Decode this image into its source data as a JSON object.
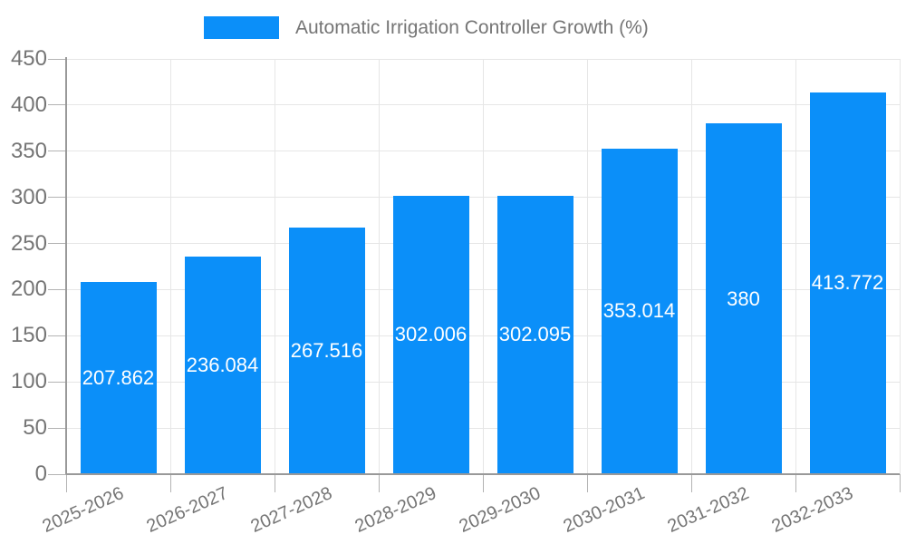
{
  "chart_data": {
    "type": "bar",
    "title": "Automatic Irrigation Controller Growth (%)",
    "categories": [
      "2025-2026",
      "2026-2027",
      "2027-2028",
      "2028-2029",
      "2029-2030",
      "2030-2031",
      "2031-2032",
      "2032-2033"
    ],
    "values": [
      207.862,
      236.084,
      267.516,
      302.006,
      302.095,
      353.014,
      380,
      413.772
    ],
    "value_labels": [
      "207.862",
      "236.084",
      "267.516",
      "302.006",
      "302.095",
      "353.014",
      "380",
      "413.772"
    ],
    "ylim": [
      0,
      450
    ],
    "ytick_step": 50,
    "ytick_labels": [
      "0",
      "50",
      "100",
      "150",
      "200",
      "250",
      "300",
      "350",
      "400",
      "450"
    ],
    "grid": true,
    "legend_position": "top",
    "colors": {
      "bar": "#0b8ff9",
      "grid": "#e6e6e6",
      "axis": "#999999",
      "tick": "#b3b3b3",
      "label_text": "#757575",
      "value_text": "#ffffff",
      "background": "#ffffff"
    }
  }
}
